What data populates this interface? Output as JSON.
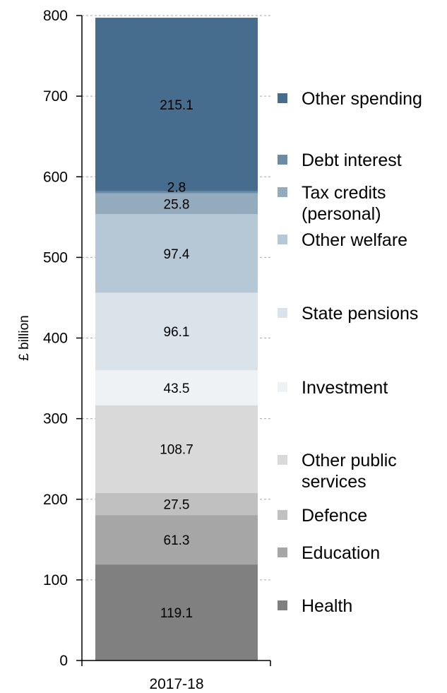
{
  "chart_data": {
    "type": "bar",
    "stacked": true,
    "categories": [
      "2017-18"
    ],
    "ylabel": "£ billion",
    "ylim": [
      0,
      800
    ],
    "yticks": [
      "0",
      "100",
      "200",
      "300",
      "400",
      "500",
      "600",
      "700",
      "800"
    ],
    "grid": true,
    "legend_position": "right",
    "series": [
      {
        "name": "Health",
        "values": [
          119.1
        ],
        "label": "119.1",
        "color": "#808080"
      },
      {
        "name": "Education",
        "values": [
          61.3
        ],
        "label": "61.3",
        "color": "#a6a6a6"
      },
      {
        "name": "Defence",
        "values": [
          27.5
        ],
        "label": "27.5",
        "color": "#c0c0c0"
      },
      {
        "name": "Other public services",
        "values": [
          108.7
        ],
        "label": "108.7",
        "color": "#d9d9d9"
      },
      {
        "name": "Investment",
        "values": [
          43.5
        ],
        "label": "43.5",
        "color": "#eef2f5"
      },
      {
        "name": "State pensions",
        "values": [
          96.1
        ],
        "label": "96.1",
        "color": "#dbe3ea"
      },
      {
        "name": "Other welfare",
        "values": [
          97.4
        ],
        "label": "97.4",
        "color": "#b6c8d6"
      },
      {
        "name": "Tax credits (personal)",
        "values": [
          25.8
        ],
        "label": "25.8",
        "color": "#94abbe"
      },
      {
        "name": "Debt interest",
        "values": [
          2.8
        ],
        "label": "2.8",
        "color": "#6c8ba6"
      },
      {
        "name": "Other spending",
        "values": [
          215.1
        ],
        "label": "215.1",
        "color": "#476d8e"
      }
    ]
  }
}
